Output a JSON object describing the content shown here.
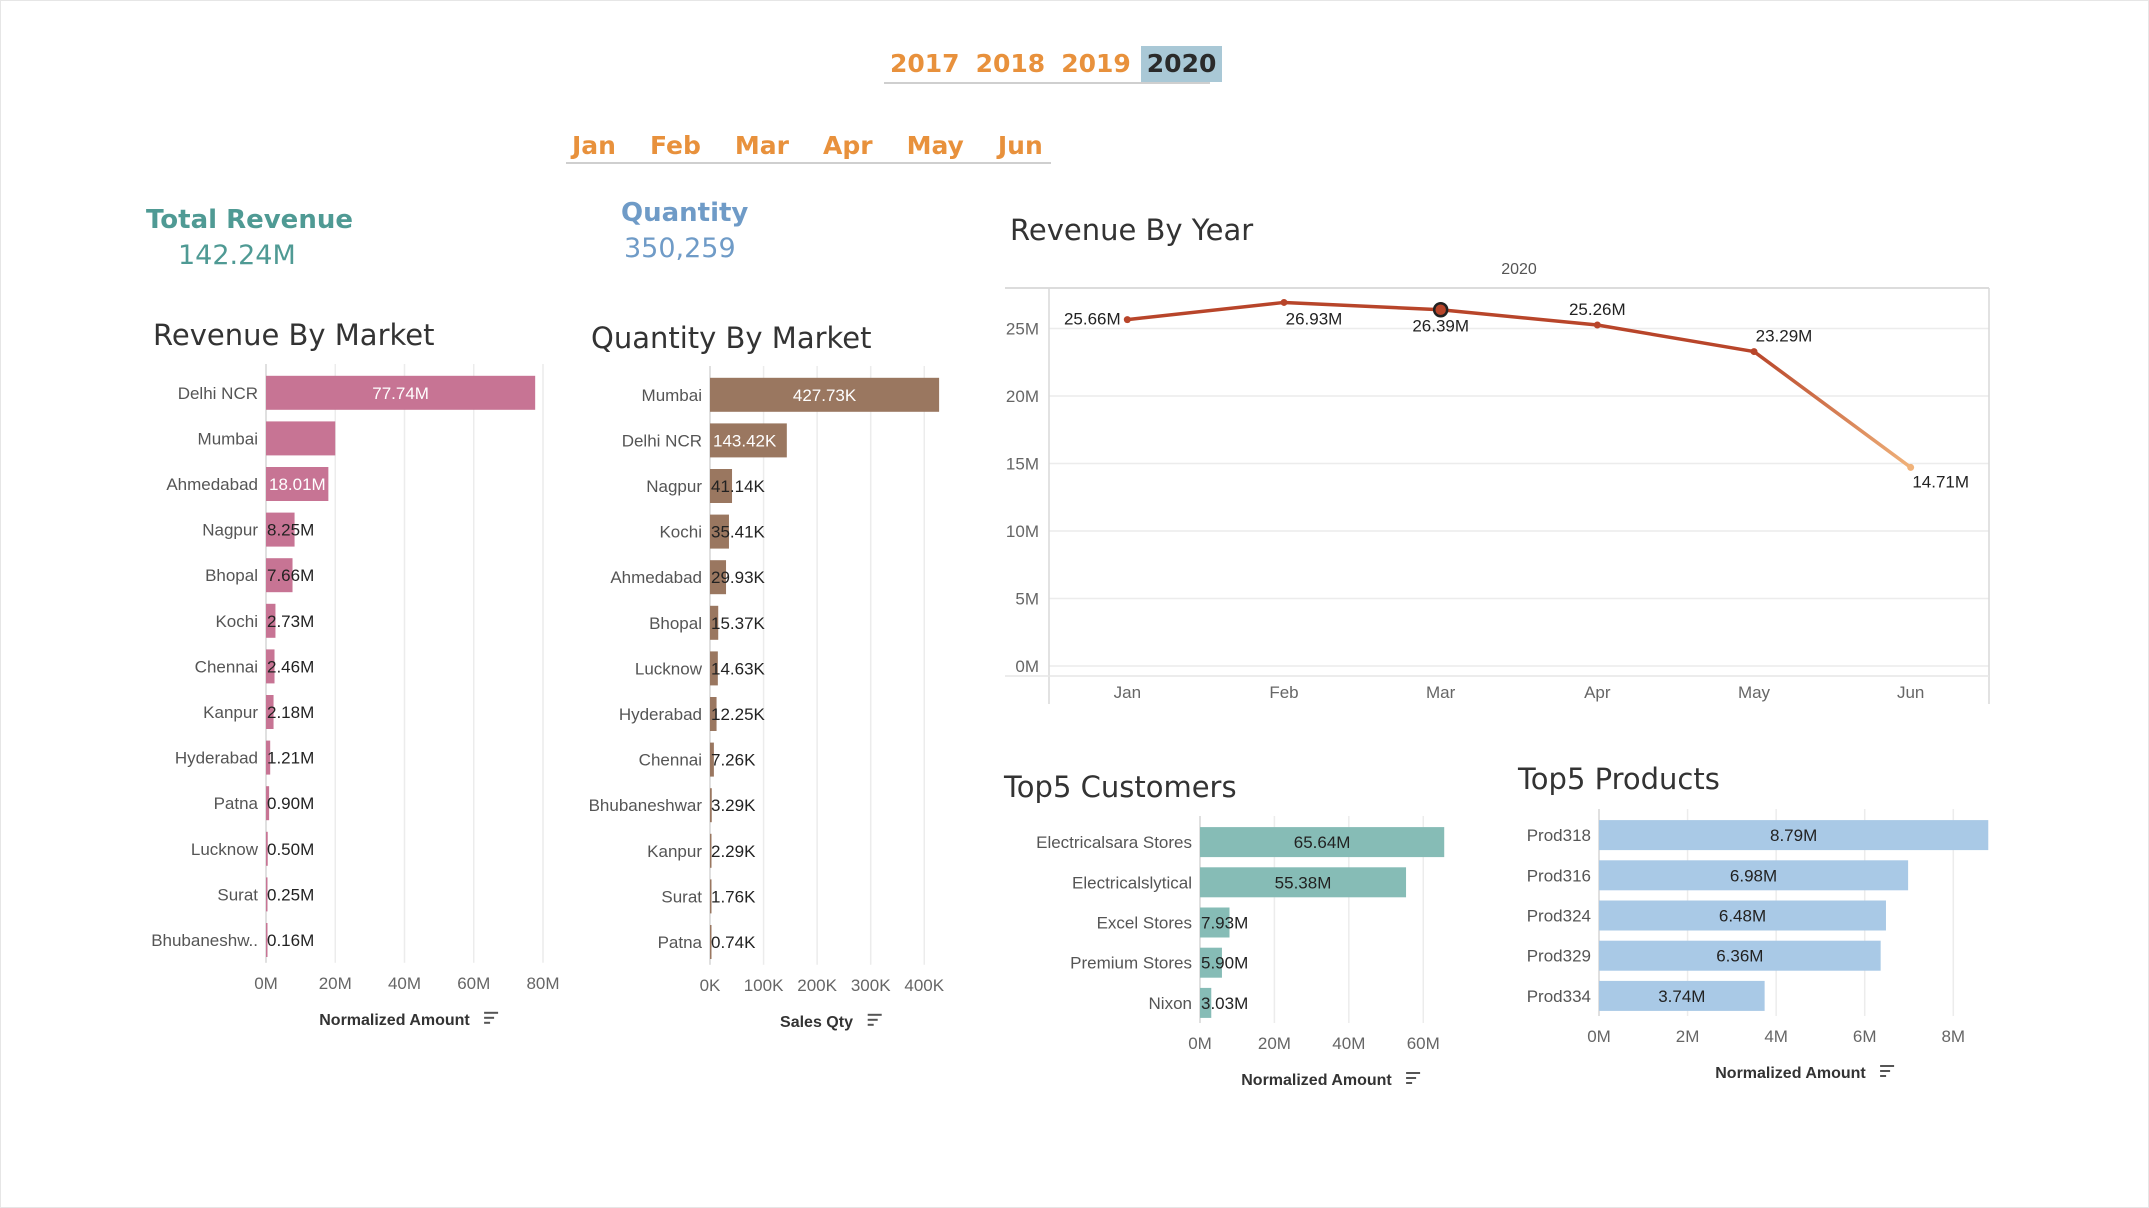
{
  "colors": {
    "filter_text": "#e8913c",
    "filter_selected_bg": "#a9c8d6",
    "revenue_kpi": "#4f9a94",
    "quantity_kpi": "#6f9bc7",
    "revenue_market_bar": "#c77494",
    "quantity_market_bar": "#9a7760",
    "customers_bar": "#86bcb6",
    "products_bar": "#a9c9e6",
    "line_main": "#b8452a",
    "line_end": "#f0b27a"
  },
  "filters": {
    "years": [
      {
        "label": "2017",
        "selected": false
      },
      {
        "label": "2018",
        "selected": false
      },
      {
        "label": "2019",
        "selected": false
      },
      {
        "label": "2020",
        "selected": true
      }
    ],
    "months": [
      {
        "label": "Jan"
      },
      {
        "label": "Feb"
      },
      {
        "label": "Mar"
      },
      {
        "label": "Apr"
      },
      {
        "label": "May"
      },
      {
        "label": "Jun"
      }
    ]
  },
  "kpis": {
    "total_revenue": {
      "label": "Total Revenue",
      "value": "142.24M"
    },
    "quantity": {
      "label": "Quantity",
      "value": "350,259"
    }
  },
  "chart_data": [
    {
      "id": "revenue_by_market",
      "type": "bar",
      "orientation": "horizontal",
      "title": "Revenue By Market",
      "xlabel": "Normalized Amount",
      "xlim": [
        0,
        80
      ],
      "xticks": [
        0,
        20,
        40,
        60,
        80
      ],
      "xtick_labels": [
        "0M",
        "20M",
        "40M",
        "60M",
        "80M"
      ],
      "categories": [
        "Delhi NCR",
        "Mumbai",
        "Ahmedabad",
        "Nagpur",
        "Bhopal",
        "Kochi",
        "Chennai",
        "Kanpur",
        "Hyderabad",
        "Patna",
        "Lucknow",
        "Surat",
        "Bhubaneshw.."
      ],
      "values": [
        77.74,
        20.0,
        18.01,
        8.25,
        7.66,
        2.73,
        2.46,
        2.18,
        1.21,
        0.9,
        0.5,
        0.25,
        0.16
      ],
      "labels": [
        "77.74M",
        "",
        "18.01M",
        "8.25M",
        "7.66M",
        "2.73M",
        "2.46M",
        "2.18M",
        "1.21M",
        "0.90M",
        "0.50M",
        "0.25M",
        "0.16M"
      ]
    },
    {
      "id": "quantity_by_market",
      "type": "bar",
      "orientation": "horizontal",
      "title": "Quantity By Market",
      "xlabel": "Sales Qty",
      "xlim": [
        0,
        435
      ],
      "xticks": [
        0,
        100,
        200,
        300,
        400
      ],
      "xtick_labels": [
        "0K",
        "100K",
        "200K",
        "300K",
        "400K"
      ],
      "categories": [
        "Mumbai",
        "Delhi NCR",
        "Nagpur",
        "Kochi",
        "Ahmedabad",
        "Bhopal",
        "Lucknow",
        "Hyderabad",
        "Chennai",
        "Bhubaneshwar",
        "Kanpur",
        "Surat",
        "Patna"
      ],
      "values": [
        427.73,
        143.42,
        41.14,
        35.41,
        29.93,
        15.37,
        14.63,
        12.25,
        7.26,
        3.29,
        2.29,
        1.76,
        0.74
      ],
      "labels": [
        "427.73K",
        "143.42K",
        "41.14K",
        "35.41K",
        "29.93K",
        "15.37K",
        "14.63K",
        "12.25K",
        "7.26K",
        "3.29K",
        "2.29K",
        "1.76K",
        "0.74K"
      ]
    },
    {
      "id": "revenue_by_year",
      "type": "line",
      "title": "Revenue By Year",
      "panel_header": "2020",
      "categories": [
        "Jan",
        "Feb",
        "Mar",
        "Apr",
        "May",
        "Jun"
      ],
      "values": [
        25.66,
        26.93,
        26.39,
        25.26,
        23.29,
        14.71
      ],
      "labels": [
        "25.66M",
        "26.93M",
        "26.39M",
        "25.26M",
        "23.29M",
        "14.71M"
      ],
      "ylim": [
        0,
        28
      ],
      "yticks": [
        0,
        5,
        10,
        15,
        20,
        25
      ],
      "ytick_labels": [
        "0M",
        "5M",
        "10M",
        "15M",
        "20M",
        "25M"
      ],
      "highlight_index": 2
    },
    {
      "id": "top5_customers",
      "type": "bar",
      "orientation": "horizontal",
      "title": "Top5 Customers",
      "xlabel": "Normalized Amount",
      "xlim": [
        0,
        68
      ],
      "xticks": [
        0,
        20,
        40,
        60
      ],
      "xtick_labels": [
        "0M",
        "20M",
        "40M",
        "60M"
      ],
      "categories": [
        "Electricalsara Stores",
        "Electricalslytical",
        "Excel Stores",
        "Premium Stores",
        "Nixon"
      ],
      "values": [
        65.64,
        55.38,
        7.93,
        5.9,
        3.03
      ],
      "labels": [
        "65.64M",
        "55.38M",
        "7.93M",
        "5.90M",
        "3.03M"
      ]
    },
    {
      "id": "top5_products",
      "type": "bar",
      "orientation": "horizontal",
      "title": "Top5 Products",
      "xlabel": "Normalized Amount",
      "xlim": [
        0,
        9.1
      ],
      "xticks": [
        0,
        2,
        4,
        6,
        8
      ],
      "xtick_labels": [
        "0M",
        "2M",
        "4M",
        "6M",
        "8M"
      ],
      "categories": [
        "Prod318",
        "Prod316",
        "Prod324",
        "Prod329",
        "Prod334"
      ],
      "values": [
        8.79,
        6.98,
        6.48,
        6.36,
        3.74
      ],
      "labels": [
        "8.79M",
        "6.98M",
        "6.48M",
        "6.36M",
        "3.74M"
      ]
    }
  ]
}
